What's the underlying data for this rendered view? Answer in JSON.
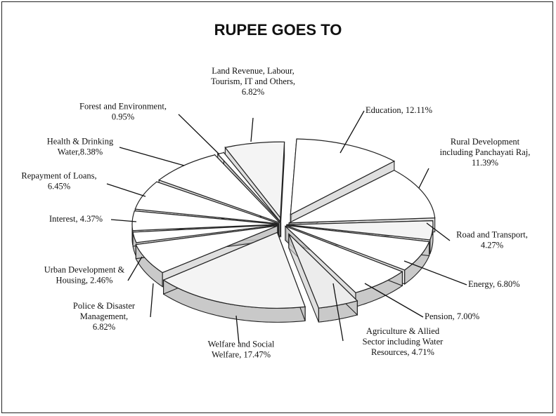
{
  "chart_data": {
    "type": "pie",
    "title": "RUPEE GOES TO",
    "slices": [
      {
        "name": "Education",
        "label": [
          "Education, 12.11%"
        ],
        "value": 12.11,
        "fill": "#ffffff"
      },
      {
        "name": "Rural Development including Panchayati Raj",
        "label": [
          "Rural Development",
          "including Panchayati Raj,",
          "11.39%"
        ],
        "value": 11.39,
        "fill": "#ffffff"
      },
      {
        "name": "Road and Transport",
        "label": [
          "Road and Transport,",
          "4.27%"
        ],
        "value": 4.27,
        "fill": "#f4f4f4"
      },
      {
        "name": "Energy",
        "label": [
          "Energy, 6.80%"
        ],
        "value": 6.8,
        "fill": "#ffffff"
      },
      {
        "name": "Pension",
        "label": [
          "Pension, 7.00%"
        ],
        "value": 7.0,
        "fill": "#ffffff"
      },
      {
        "name": "Agriculture & Allied Sector including Water Resources",
        "label": [
          "Agriculture & Allied",
          "Sector including Water",
          "Resources, 4.71%"
        ],
        "value": 4.71,
        "fill": "#ececec"
      },
      {
        "name": "Welfare and Social Welfare",
        "label": [
          "Welfare and Social",
          "Welfare, 17.47%"
        ],
        "value": 17.47,
        "fill": "#f4f4f4"
      },
      {
        "name": "Police & Disaster Management",
        "label": [
          "Police & Disaster",
          "Management,",
          "6.82%"
        ],
        "value": 6.82,
        "fill": "#ffffff"
      },
      {
        "name": "Urban Development & Housing",
        "label": [
          "Urban Development &",
          "Housing, 2.46%"
        ],
        "value": 2.46,
        "fill": "#ffffff"
      },
      {
        "name": "Interest",
        "label": [
          "Interest, 4.37%"
        ],
        "value": 4.37,
        "fill": "#ffffff"
      },
      {
        "name": "Repayment of Loans",
        "label": [
          "Repayment of Loans,",
          "6.45%"
        ],
        "value": 6.45,
        "fill": "#ffffff"
      },
      {
        "name": "Health & Drinking Water",
        "label": [
          "Health & Drinking",
          "Water,8.38%"
        ],
        "value": 8.38,
        "fill": "#ffffff"
      },
      {
        "name": "Forest and Environment",
        "label": [
          "Forest and Environment,",
          "0.95%"
        ],
        "value": 0.95,
        "fill": "#ffffff"
      },
      {
        "name": "Land Revenue, Labour, Tourism, IT and Others",
        "label": [
          "Land Revenue, Labour,",
          "Tourism, IT and Others,",
          "6.82%"
        ],
        "value": 6.82,
        "fill": "#f4f4f4"
      }
    ]
  }
}
